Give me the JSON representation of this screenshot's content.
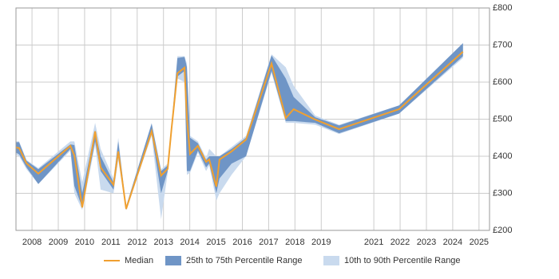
{
  "chart_data": {
    "type": "line",
    "x": [
      2007.39,
      2007.51,
      2007.79,
      2008.24,
      2009.46,
      2009.61,
      2009.91,
      2010.4,
      2010.61,
      2011.1,
      2011.28,
      2011.58,
      2012.55,
      2012.91,
      2013.16,
      2013.31,
      2013.53,
      2013.8,
      2013.89,
      2014.01,
      2014.31,
      2014.62,
      2014.74,
      2015.01,
      2015.13,
      2015.59,
      2016.14,
      2017.11,
      2017.65,
      2017.95,
      2018.77,
      2019.68,
      2021.96,
      2024.39
    ],
    "series": [
      {
        "name": "Median",
        "color": "#f0a030",
        "values": [
          424,
          422,
          381,
          353,
          428,
          402,
          262,
          467,
          370,
          323,
          413,
          258,
          467,
          348,
          366,
          477,
          624,
          639,
          503,
          406,
          428,
          385,
          391,
          318,
          391,
          413,
          445,
          650,
          503,
          527,
          499,
          473,
          527,
          682
        ]
      },
      {
        "name": "25th to 75th Percentile Range",
        "color": "#6f95c6",
        "low": [
          410,
          405,
          370,
          325,
          420,
          320,
          262,
          440,
          360,
          310,
          400,
          255,
          460,
          300,
          360,
          470,
          615,
          630,
          360,
          360,
          415,
          370,
          380,
          300,
          340,
          380,
          400,
          630,
          495,
          495,
          490,
          462,
          515,
          670
        ],
        "high": [
          438,
          438,
          388,
          365,
          432,
          430,
          300,
          470,
          400,
          330,
          440,
          265,
          488,
          360,
          375,
          485,
          665,
          668,
          640,
          450,
          435,
          390,
          400,
          400,
          400,
          420,
          450,
          672,
          610,
          560,
          505,
          483,
          537,
          705
        ]
      },
      {
        "name": "10th to 90th Percentile Range",
        "color": "#c9daee",
        "low": [
          405,
          400,
          365,
          325,
          415,
          300,
          255,
          430,
          310,
          300,
          390,
          255,
          455,
          230,
          355,
          465,
          610,
          600,
          350,
          355,
          410,
          360,
          375,
          280,
          300,
          350,
          400,
          625,
          490,
          490,
          485,
          460,
          515,
          665
        ],
        "high": [
          440,
          440,
          390,
          368,
          440,
          440,
          330,
          490,
          420,
          340,
          450,
          265,
          490,
          365,
          380,
          490,
          670,
          670,
          650,
          455,
          440,
          395,
          420,
          400,
          400,
          425,
          455,
          675,
          640,
          590,
          510,
          485,
          537,
          705
        ]
      }
    ],
    "xlim": [
      2007.39,
      2025.4
    ],
    "xticks": [
      2008,
      2009,
      2010,
      2011,
      2012,
      2013,
      2014,
      2015,
      2016,
      2017,
      2018,
      2019,
      2021,
      2022,
      2023,
      2024,
      2025
    ],
    "ylim": [
      200,
      800
    ],
    "yticks": [
      {
        "value": 200,
        "label": "£200"
      },
      {
        "value": 300,
        "label": "£300"
      },
      {
        "value": 400,
        "label": "£400"
      },
      {
        "value": 500,
        "label": "£500"
      },
      {
        "value": 600,
        "label": "£600"
      },
      {
        "value": 700,
        "label": "£700"
      },
      {
        "value": 800,
        "label": "£800"
      }
    ],
    "grid": true
  }
}
